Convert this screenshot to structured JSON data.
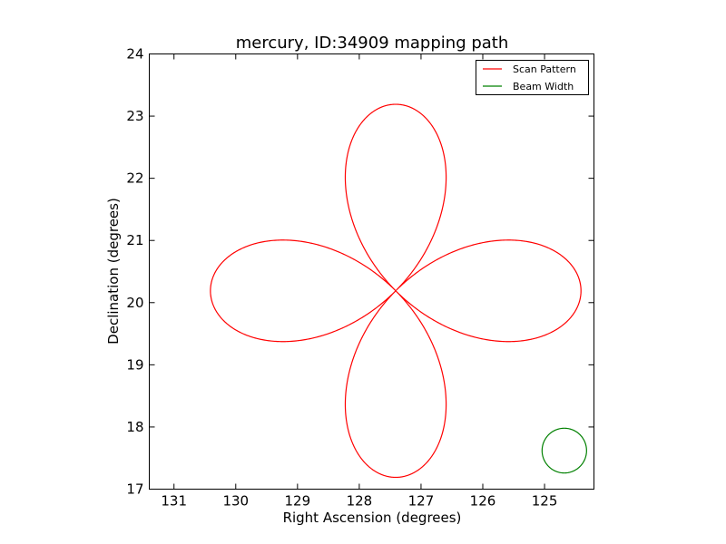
{
  "chart_data": {
    "type": "line",
    "title": "mercury, ID:34909 mapping path",
    "xlabel": "Right Ascension (degrees)",
    "ylabel": "Declination (degrees)",
    "xlim": [
      131.4,
      124.2
    ],
    "ylim": [
      17,
      24
    ],
    "xticks": [
      131,
      130,
      129,
      128,
      127,
      126,
      125
    ],
    "yticks": [
      17,
      18,
      19,
      20,
      21,
      22,
      23,
      24
    ],
    "grid": false,
    "legend": "top-right",
    "series": [
      {
        "name": "Scan Pattern",
        "color": "#ff0000",
        "shape": "four-lobed rose curve",
        "center": [
          127.41,
          20.19
        ],
        "lobe_reach_deg": 3.0,
        "points": [
          {
            "x": 124.4,
            "y": 20.19
          },
          {
            "x": 125.5,
            "y": 21.0
          },
          {
            "x": 125.5,
            "y": 19.37
          },
          {
            "x": 127.41,
            "y": 23.19
          },
          {
            "x": 128.25,
            "y": 22.0
          },
          {
            "x": 126.57,
            "y": 22.0
          },
          {
            "x": 130.42,
            "y": 20.19
          },
          {
            "x": 129.33,
            "y": 21.0
          },
          {
            "x": 129.33,
            "y": 19.37
          },
          {
            "x": 127.41,
            "y": 17.19
          },
          {
            "x": 128.25,
            "y": 18.37
          },
          {
            "x": 126.57,
            "y": 18.37
          }
        ]
      },
      {
        "name": "Beam Width",
        "color": "#008000",
        "shape": "circle",
        "center": [
          124.68,
          17.62
        ],
        "radius": 0.36
      }
    ]
  }
}
